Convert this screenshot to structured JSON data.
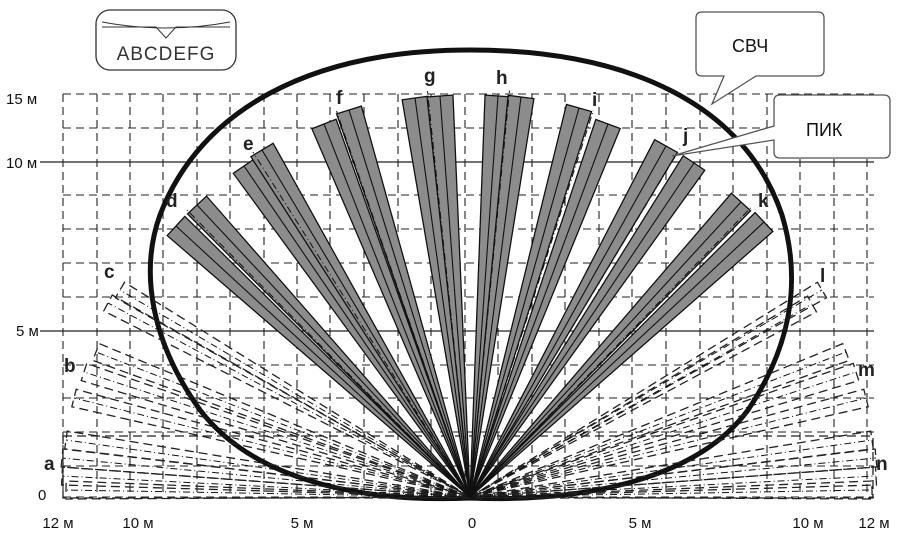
{
  "lens_icon": {
    "letters": "ABCDEFG"
  },
  "y_axis": {
    "labels": [
      "15 м",
      "10 м",
      "5 м",
      "0"
    ]
  },
  "x_axis": {
    "labels": [
      "12 м",
      "10 м",
      "5 м",
      "0",
      "5 м",
      "10 м",
      "12 м"
    ]
  },
  "zones": {
    "pir_upper": [
      "d",
      "e",
      "f",
      "g",
      "h",
      "i",
      "j",
      "k"
    ],
    "left_lower": [
      "c",
      "b",
      "a"
    ],
    "right_lower": [
      "l",
      "m",
      "n"
    ]
  },
  "callouts": {
    "microwave": "СВЧ",
    "pir": "ПИК"
  },
  "colors": {
    "zone_fill": "#8c8c8c",
    "line": "#111111"
  }
}
